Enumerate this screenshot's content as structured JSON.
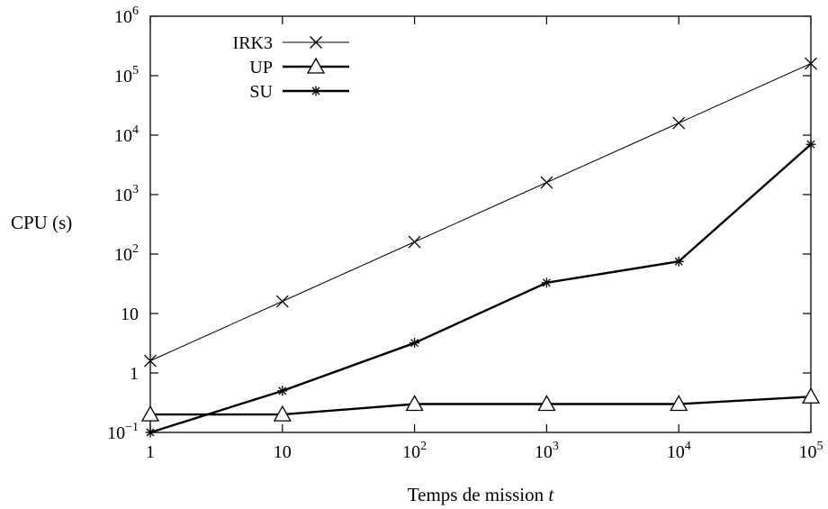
{
  "chart_data": {
    "type": "line",
    "x_scale": "log",
    "y_scale": "log",
    "xlim": [
      1,
      100000
    ],
    "ylim": [
      0.1,
      1000000
    ],
    "xlabel_prefix": "Temps de mission ",
    "xlabel_var": "t",
    "ylabel": "CPU (s)",
    "x_ticks": [
      {
        "value": 1,
        "base": "1",
        "exp": ""
      },
      {
        "value": 10,
        "base": "10",
        "exp": ""
      },
      {
        "value": 100,
        "base": "10",
        "exp": "2"
      },
      {
        "value": 1000,
        "base": "10",
        "exp": "3"
      },
      {
        "value": 10000,
        "base": "10",
        "exp": "4"
      },
      {
        "value": 100000,
        "base": "10",
        "exp": "5"
      }
    ],
    "y_ticks": [
      {
        "value": 0.1,
        "base": "10",
        "exp": "−1"
      },
      {
        "value": 1,
        "base": "1",
        "exp": ""
      },
      {
        "value": 10,
        "base": "10",
        "exp": ""
      },
      {
        "value": 100,
        "base": "10",
        "exp": "2"
      },
      {
        "value": 1000,
        "base": "10",
        "exp": "3"
      },
      {
        "value": 10000,
        "base": "10",
        "exp": "4"
      },
      {
        "value": 100000,
        "base": "10",
        "exp": "5"
      },
      {
        "value": 1000000,
        "base": "10",
        "exp": "6"
      }
    ],
    "x": [
      1,
      10,
      100,
      1000,
      10000,
      100000
    ],
    "series": [
      {
        "name": "IRK3",
        "marker": "x",
        "line": "thin",
        "color": "#000000",
        "values": [
          1.6,
          16,
          160,
          1600,
          16000,
          160000
        ]
      },
      {
        "name": "UP",
        "marker": "triangle",
        "line": "thick",
        "color": "#000000",
        "values": [
          0.2,
          0.2,
          0.3,
          0.3,
          0.3,
          0.4
        ]
      },
      {
        "name": "SU",
        "marker": "star",
        "line": "thick",
        "color": "#000000",
        "values": [
          0.1,
          0.5,
          3.2,
          33,
          75,
          7000
        ]
      }
    ],
    "grid": false,
    "legend_position": "top-left"
  }
}
